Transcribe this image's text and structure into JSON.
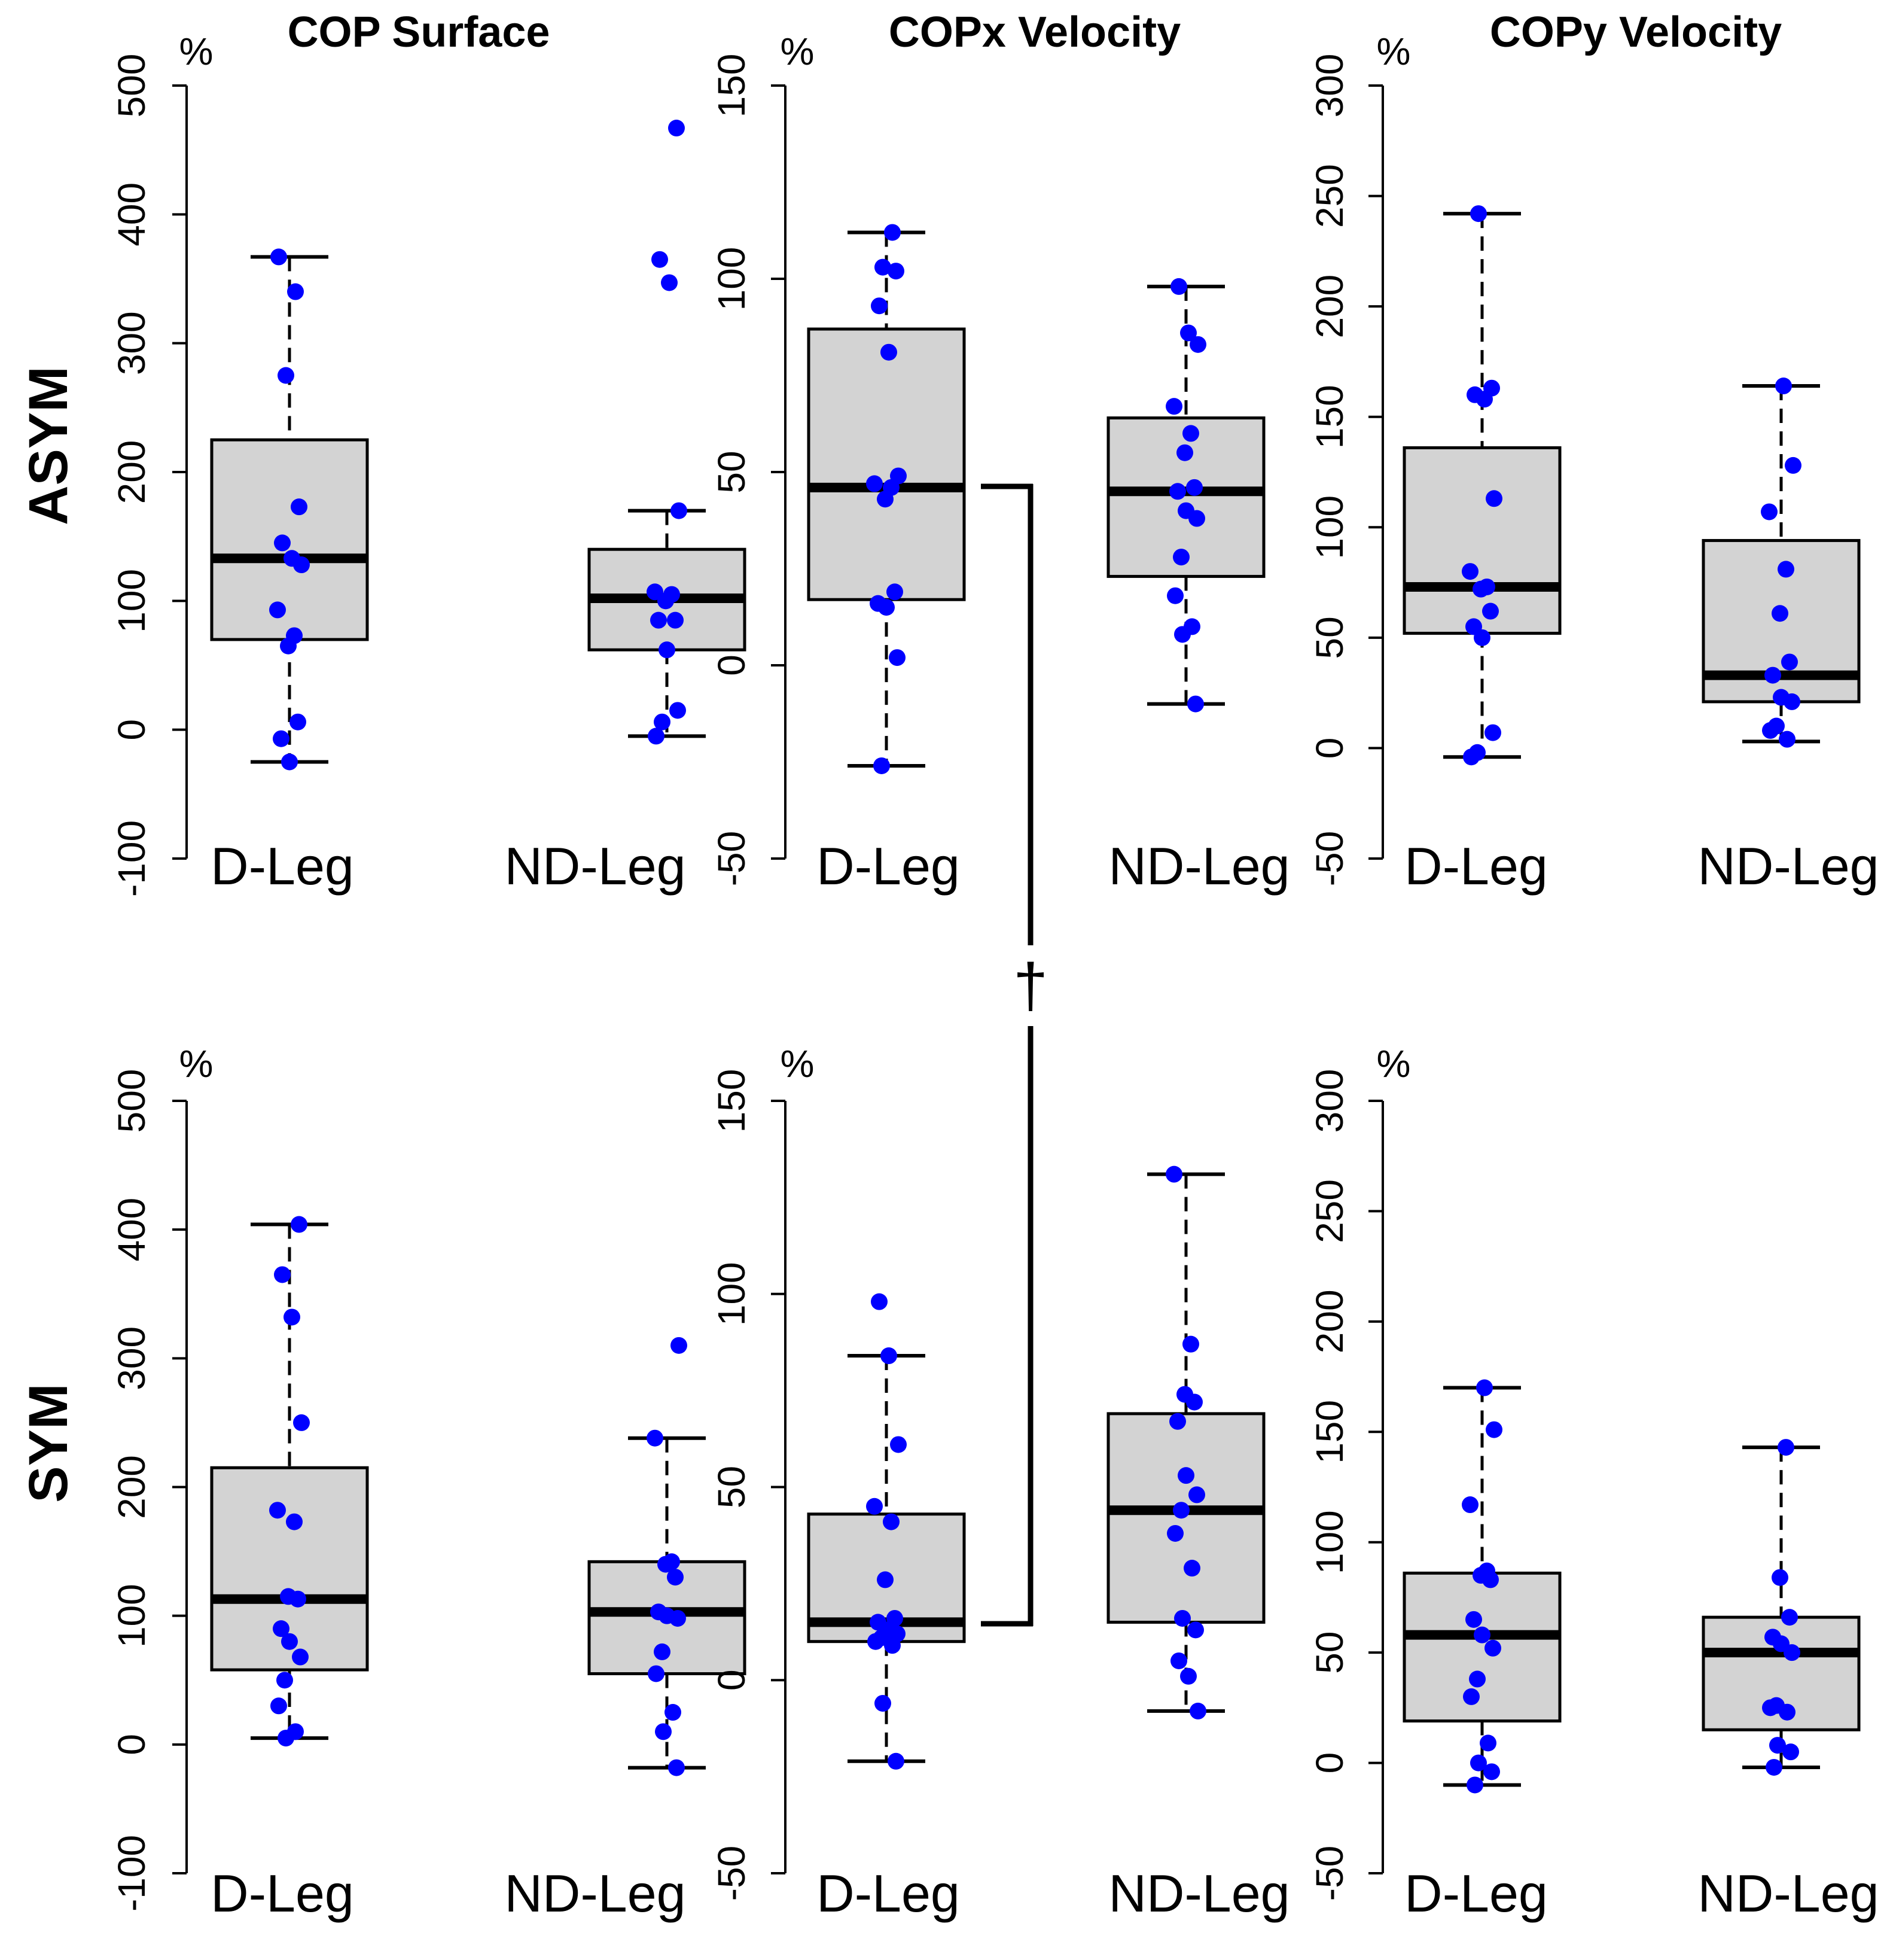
{
  "chart_data": {
    "type": "box",
    "title": "",
    "columns": [
      {
        "title": "COP Surface",
        "ylabel": "%",
        "ylim": [
          -100,
          500
        ],
        "ticks": [
          -100,
          0,
          100,
          200,
          300,
          400,
          500
        ]
      },
      {
        "title": "COPx Velocity",
        "ylabel": "%",
        "ylim": [
          -50,
          150
        ],
        "ticks": [
          -50,
          0,
          50,
          100,
          150
        ]
      },
      {
        "title": "COPy Velocity",
        "ylabel": "%",
        "ylim": [
          -50,
          300
        ],
        "ticks": [
          -50,
          0,
          50,
          100,
          150,
          200,
          250,
          300
        ]
      }
    ],
    "rows": [
      "ASYM",
      "SYM"
    ],
    "categories": [
      "D-Leg",
      "ND-Leg"
    ],
    "significance": {
      "symbol": "†",
      "between": "COPx Velocity D-Leg median ASYM vs SYM"
    },
    "panels": [
      {
        "row": "ASYM",
        "column": "COP Surface",
        "boxes": [
          {
            "category": "D-Leg",
            "whisker_low": -25,
            "q1": 70,
            "median": 133,
            "q3": 225,
            "whisker_high": 367,
            "points": [
              367,
              340,
              275,
              173,
              145,
              133,
              128,
              93,
              73,
              65,
              6,
              -7,
              -25
            ]
          },
          {
            "category": "ND-Leg",
            "whisker_low": -5,
            "q1": 62,
            "median": 102,
            "q3": 140,
            "whisker_high": 170,
            "points": [
              467,
              365,
              347,
              170,
              107,
              105,
              100,
              85,
              85,
              62,
              15,
              6,
              -5
            ]
          }
        ]
      },
      {
        "row": "ASYM",
        "column": "COPx Velocity",
        "boxes": [
          {
            "category": "D-Leg",
            "whisker_low": -26,
            "q1": 17,
            "median": 46,
            "q3": 87,
            "whisker_high": 112,
            "points": [
              112,
              103,
              102,
              93,
              81,
              49,
              47,
              46,
              43,
              19,
              16,
              15,
              2,
              -26
            ]
          },
          {
            "category": "ND-Leg",
            "whisker_low": -10,
            "q1": 23,
            "median": 45,
            "q3": 64,
            "whisker_high": 98,
            "points": [
              98,
              86,
              83,
              67,
              60,
              55,
              46,
              45,
              40,
              38,
              28,
              18,
              10,
              8,
              -10
            ]
          }
        ]
      },
      {
        "row": "ASYM",
        "column": "COPy Velocity",
        "boxes": [
          {
            "category": "D-Leg",
            "whisker_low": -4,
            "q1": 52,
            "median": 73,
            "q3": 136,
            "whisker_high": 242,
            "points": [
              242,
              163,
              160,
              158,
              113,
              80,
              73,
              72,
              62,
              55,
              50,
              7,
              -2,
              -4
            ]
          },
          {
            "category": "ND-Leg",
            "whisker_low": 3,
            "q1": 21,
            "median": 33,
            "q3": 94,
            "whisker_high": 164,
            "points": [
              164,
              128,
              107,
              81,
              61,
              39,
              33,
              23,
              21,
              10,
              8,
              4
            ]
          }
        ]
      },
      {
        "row": "SYM",
        "column": "COP Surface",
        "boxes": [
          {
            "category": "D-Leg",
            "whisker_low": 5,
            "q1": 58,
            "median": 113,
            "q3": 215,
            "whisker_high": 404,
            "points": [
              404,
              365,
              332,
              250,
              182,
              173,
              115,
              113,
              90,
              80,
              68,
              50,
              30,
              10,
              5
            ]
          },
          {
            "category": "ND-Leg",
            "whisker_low": -18,
            "q1": 55,
            "median": 103,
            "q3": 142,
            "whisker_high": 238,
            "points": [
              310,
              238,
              142,
              140,
              130,
              103,
              100,
              98,
              72,
              55,
              25,
              10,
              -18
            ]
          }
        ]
      },
      {
        "row": "SYM",
        "column": "COPx Velocity",
        "boxes": [
          {
            "category": "D-Leg",
            "whisker_low": -21,
            "q1": 10,
            "median": 15,
            "q3": 43,
            "whisker_high": 84,
            "points": [
              98,
              84,
              61,
              45,
              41,
              26,
              16,
              15,
              13,
              12,
              11,
              10,
              9,
              -6,
              -21
            ]
          },
          {
            "category": "ND-Leg",
            "whisker_low": -8,
            "q1": 15,
            "median": 44,
            "q3": 69,
            "whisker_high": 131,
            "points": [
              131,
              87,
              74,
              72,
              67,
              53,
              48,
              44,
              38,
              29,
              16,
              13,
              5,
              1,
              -8
            ]
          }
        ]
      },
      {
        "row": "SYM",
        "column": "COPy Velocity",
        "boxes": [
          {
            "category": "D-Leg",
            "whisker_low": -10,
            "q1": 19,
            "median": 58,
            "q3": 86,
            "whisker_high": 170,
            "points": [
              170,
              151,
              117,
              87,
              85,
              83,
              65,
              58,
              52,
              38,
              30,
              9,
              0,
              -4,
              -10
            ]
          },
          {
            "category": "ND-Leg",
            "whisker_low": -2,
            "q1": 15,
            "median": 50,
            "q3": 66,
            "whisker_high": 143,
            "points": [
              143,
              84,
              66,
              57,
              54,
              50,
              26,
              25,
              23,
              8,
              5,
              -2
            ]
          }
        ]
      }
    ]
  }
}
